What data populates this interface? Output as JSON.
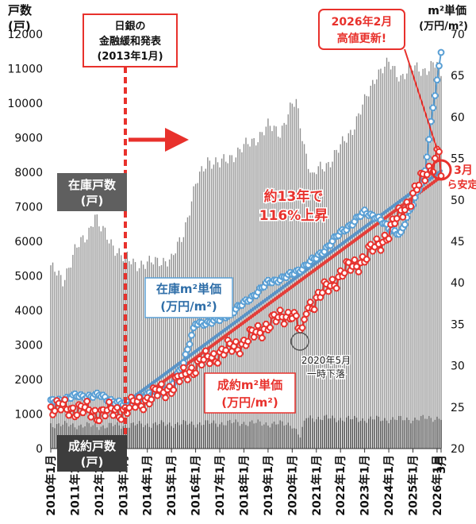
{
  "chart_data": {
    "type": "bar+line",
    "left_axis": {
      "title_line1": "戸数",
      "title_line2": "(戸)",
      "min": 0,
      "max": 12000,
      "step": 1000,
      "ticks": [
        "0",
        "1000",
        "2000",
        "3000",
        "4000",
        "5000",
        "6000",
        "7000",
        "8000",
        "9000",
        "10000",
        "11000",
        "12000"
      ]
    },
    "right_axis": {
      "title_line1": "m²単価",
      "title_line2": "(万円/m²)",
      "min": 20,
      "max": 70,
      "step": 5,
      "ticks": [
        "20",
        "25",
        "30",
        "35",
        "40",
        "45",
        "50",
        "55",
        "60",
        "65",
        "70"
      ]
    },
    "x_axis": {
      "labels": [
        "2010年1月",
        "2011年1月",
        "2012年1月",
        "2013年1月",
        "2014年1月",
        "2015年1月",
        "2016年1月",
        "2017年1月",
        "2018年1月",
        "2019年1月",
        "2020年1月",
        "2021年1月",
        "2022年1月",
        "2023年1月",
        "2024年1月",
        "2025年1月",
        "2026年1月",
        "3月"
      ]
    },
    "months_total": 195,
    "series": [
      {
        "name": "在庫戸数(戸)",
        "kind": "bar",
        "color": "#8f8f8f",
        "anchors": [
          [
            0,
            5200
          ],
          [
            6,
            4900
          ],
          [
            12,
            5700
          ],
          [
            18,
            6200
          ],
          [
            22,
            6800
          ],
          [
            24,
            6400
          ],
          [
            30,
            6000
          ],
          [
            36,
            5500
          ],
          [
            42,
            5400
          ],
          [
            48,
            5300
          ],
          [
            54,
            5500
          ],
          [
            60,
            5400
          ],
          [
            66,
            6300
          ],
          [
            72,
            7600
          ],
          [
            78,
            8400
          ],
          [
            84,
            8200
          ],
          [
            90,
            8500
          ],
          [
            96,
            8700
          ],
          [
            102,
            9000
          ],
          [
            108,
            9300
          ],
          [
            114,
            9200
          ],
          [
            120,
            9900
          ],
          [
            122,
            10000
          ],
          [
            126,
            8800
          ],
          [
            130,
            7800
          ],
          [
            132,
            8000
          ],
          [
            138,
            8300
          ],
          [
            144,
            8700
          ],
          [
            150,
            9300
          ],
          [
            156,
            10000
          ],
          [
            162,
            10900
          ],
          [
            168,
            11100
          ],
          [
            174,
            10800
          ],
          [
            180,
            11000
          ],
          [
            186,
            11000
          ],
          [
            192,
            11100
          ],
          [
            194,
            10800
          ]
        ]
      },
      {
        "name": "成約戸数(戸)",
        "kind": "bar",
        "color": "#4d4d4d",
        "anchors": [
          [
            0,
            700
          ],
          [
            24,
            650
          ],
          [
            48,
            700
          ],
          [
            96,
            750
          ],
          [
            120,
            700
          ],
          [
            124,
            350
          ],
          [
            127,
            900
          ],
          [
            150,
            850
          ],
          [
            180,
            850
          ],
          [
            194,
            900
          ]
        ]
      },
      {
        "name": "在庫m²単価(万円/m²)",
        "kind": "line",
        "color": "#5a9fd4",
        "marker_fill": "#ffffff",
        "anchors": [
          [
            0,
            25.6
          ],
          [
            12,
            26.3
          ],
          [
            24,
            26.4
          ],
          [
            36,
            25.3
          ],
          [
            42,
            25.7
          ],
          [
            48,
            26.4
          ],
          [
            60,
            27.4
          ],
          [
            66,
            30.5
          ],
          [
            72,
            35.0
          ],
          [
            84,
            35.5
          ],
          [
            96,
            37.5
          ],
          [
            108,
            40.0
          ],
          [
            120,
            41.0
          ],
          [
            132,
            43.0
          ],
          [
            144,
            46.0
          ],
          [
            156,
            48.5
          ],
          [
            162,
            48.0
          ],
          [
            168,
            46.5
          ],
          [
            174,
            46.0
          ],
          [
            180,
            49.5
          ],
          [
            186,
            53.5
          ],
          [
            190,
            61.0
          ],
          [
            193,
            66.0
          ],
          [
            194,
            68.0
          ]
        ]
      },
      {
        "name": "成約m²単価(万円/m²)",
        "kind": "line",
        "color": "#e8312c",
        "marker_fill": "#ffffff",
        "anchors": [
          [
            0,
            25.0
          ],
          [
            12,
            24.8
          ],
          [
            24,
            24.3
          ],
          [
            36,
            24.6
          ],
          [
            48,
            26.0
          ],
          [
            60,
            27.5
          ],
          [
            66,
            28.7
          ],
          [
            72,
            30.0
          ],
          [
            84,
            31.5
          ],
          [
            96,
            32.8
          ],
          [
            108,
            35.0
          ],
          [
            120,
            36.5
          ],
          [
            125,
            33.5
          ],
          [
            127,
            37.0
          ],
          [
            132,
            38.0
          ],
          [
            144,
            41.0
          ],
          [
            156,
            43.0
          ],
          [
            168,
            46.0
          ],
          [
            174,
            48.5
          ],
          [
            180,
            50.5
          ],
          [
            186,
            53.0
          ],
          [
            190,
            54.5
          ],
          [
            193,
            56.0
          ],
          [
            194,
            53.0
          ]
        ]
      }
    ],
    "trend_lines": [
      {
        "series": "在庫m²単価(万円/m²)",
        "from": [
          36,
          25.3
        ],
        "to": [
          194,
          53.5
        ],
        "color": "#4f8fc8"
      },
      {
        "series": "成約m²単価(万円/m²)",
        "from": [
          36,
          24.5
        ],
        "to": [
          194,
          52.8
        ],
        "color": "#e8312c"
      }
    ],
    "annotations": {
      "boj": {
        "line1": "日銀の",
        "line2": "金融緩和発表",
        "line3": "(2013年1月)",
        "month": 36
      },
      "inventory_units_line1": "在庫戸数",
      "inventory_units_line2": "(戸)",
      "contracted_units_line1": "成約戸数",
      "contracted_units_line2": "(戸)",
      "inventory_price_line1": "在庫m²単価",
      "inventory_price_line2": "(万円/m²)",
      "contracted_price_line1": "成約m²単価",
      "contracted_price_line2": "(万円/m²)",
      "rise_line1": "約13年で",
      "rise_line2": "116%上昇",
      "dip_line1": "2020年5月",
      "dip_line2": "一時下落",
      "high_line1": "2026年2月",
      "high_line2": "高値更新!",
      "march_line1": "3月",
      "march_line2": "ら安定"
    }
  }
}
